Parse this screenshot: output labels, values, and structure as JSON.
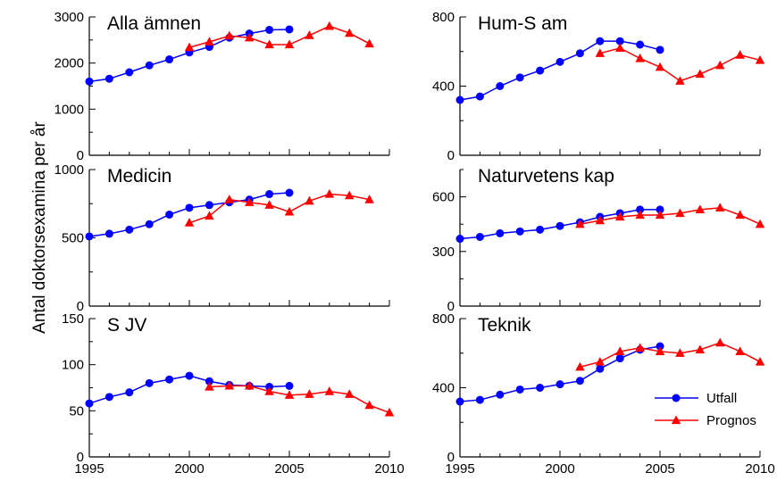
{
  "chart_data": {
    "type": "line",
    "ylabel": "Antal doktorsexamina per år",
    "colors": {
      "Utfall": "#0000ff",
      "Prognos": "#ff0000"
    },
    "legend": {
      "placement": "bottom-right of Teknik panel",
      "entries": [
        {
          "name": "Utfall",
          "marker": "circle",
          "color": "#0000ff"
        },
        {
          "name": "Prognos",
          "marker": "triangle",
          "color": "#ff0000"
        }
      ]
    },
    "xlim": [
      1995,
      2010
    ],
    "xticks": [
      1995,
      2000,
      2005,
      2010
    ],
    "panels": [
      {
        "title": "Alla ämnen",
        "ylim": [
          0,
          3000
        ],
        "yticks": [
          0,
          1000,
          2000,
          3000
        ],
        "series": [
          {
            "name": "Utfall",
            "x": [
              1995,
              1996,
              1997,
              1998,
              1999,
              2000,
              2001,
              2002,
              2003,
              2004,
              2005
            ],
            "values": [
              1600,
              1660,
              1800,
              1950,
              2080,
              2230,
              2350,
              2550,
              2640,
              2720,
              2730
            ]
          },
          {
            "name": "Prognos",
            "x": [
              2000,
              2001,
              2002,
              2003,
              2004,
              2005,
              2006,
              2007,
              2008,
              2009
            ],
            "values": [
              2340,
              2460,
              2590,
              2550,
              2400,
              2400,
              2600,
              2800,
              2650,
              2420
            ]
          }
        ]
      },
      {
        "title": "Hum-S am",
        "ylim": [
          0,
          800
        ],
        "yticks": [
          0,
          400,
          800
        ],
        "series": [
          {
            "name": "Utfall",
            "x": [
              1995,
              1996,
              1997,
              1998,
              1999,
              2000,
              2001,
              2002,
              2003,
              2004,
              2005
            ],
            "values": [
              320,
              340,
              400,
              450,
              490,
              540,
              590,
              660,
              660,
              640,
              610
            ]
          },
          {
            "name": "Prognos",
            "x": [
              2002,
              2003,
              2004,
              2005,
              2006,
              2007,
              2008,
              2009,
              2010
            ],
            "values": [
              590,
              620,
              560,
              510,
              430,
              470,
              520,
              580,
              550
            ]
          }
        ]
      },
      {
        "title": "Medicin",
        "ylim": [
          0,
          1000
        ],
        "yticks": [
          0,
          500,
          1000
        ],
        "series": [
          {
            "name": "Utfall",
            "x": [
              1995,
              1996,
              1997,
              1998,
              1999,
              2000,
              2001,
              2002,
              2003,
              2004,
              2005
            ],
            "values": [
              510,
              530,
              560,
              600,
              670,
              720,
              740,
              760,
              780,
              820,
              830
            ]
          },
          {
            "name": "Prognos",
            "x": [
              2000,
              2001,
              2002,
              2003,
              2004,
              2005,
              2006,
              2007,
              2008,
              2009
            ],
            "values": [
              610,
              660,
              780,
              760,
              740,
              690,
              770,
              820,
              810,
              780
            ]
          }
        ]
      },
      {
        "title": "Naturvetens kap",
        "ylim": [
          0,
          750
        ],
        "yticks": [
          0,
          300,
          600
        ],
        "series": [
          {
            "name": "Utfall",
            "x": [
              1995,
              1996,
              1997,
              1998,
              1999,
              2000,
              2001,
              2002,
              2003,
              2004,
              2005
            ],
            "values": [
              370,
              380,
              400,
              410,
              420,
              440,
              460,
              490,
              510,
              530,
              530
            ]
          },
          {
            "name": "Prognos",
            "x": [
              2001,
              2002,
              2003,
              2004,
              2005,
              2006,
              2007,
              2008,
              2009,
              2010
            ],
            "values": [
              450,
              470,
              490,
              500,
              500,
              510,
              530,
              540,
              500,
              450
            ]
          }
        ]
      },
      {
        "title": "S JV",
        "ylim": [
          0,
          150
        ],
        "yticks": [
          0,
          50,
          100,
          150
        ],
        "series": [
          {
            "name": "Utfall",
            "x": [
              1995,
              1996,
              1997,
              1998,
              1999,
              2000,
              2001,
              2002,
              2003,
              2004,
              2005
            ],
            "values": [
              58,
              65,
              70,
              80,
              84,
              88,
              82,
              78,
              77,
              76,
              77
            ]
          },
          {
            "name": "Prognos",
            "x": [
              2001,
              2002,
              2003,
              2004,
              2005,
              2006,
              2007,
              2008,
              2009,
              2010
            ],
            "values": [
              76,
              77,
              77,
              71,
              67,
              68,
              71,
              68,
              56,
              48
            ]
          }
        ]
      },
      {
        "title": "Teknik",
        "ylim": [
          0,
          800
        ],
        "yticks": [
          0,
          400,
          800
        ],
        "series": [
          {
            "name": "Utfall",
            "x": [
              1995,
              1996,
              1997,
              1998,
              1999,
              2000,
              2001,
              2002,
              2003,
              2004,
              2005
            ],
            "values": [
              320,
              330,
              360,
              390,
              400,
              420,
              440,
              510,
              570,
              620,
              640
            ]
          },
          {
            "name": "Prognos",
            "x": [
              2001,
              2002,
              2003,
              2004,
              2005,
              2006,
              2007,
              2008,
              2009,
              2010
            ],
            "values": [
              520,
              550,
              610,
              630,
              610,
              600,
              620,
              660,
              610,
              550
            ]
          }
        ]
      }
    ]
  }
}
